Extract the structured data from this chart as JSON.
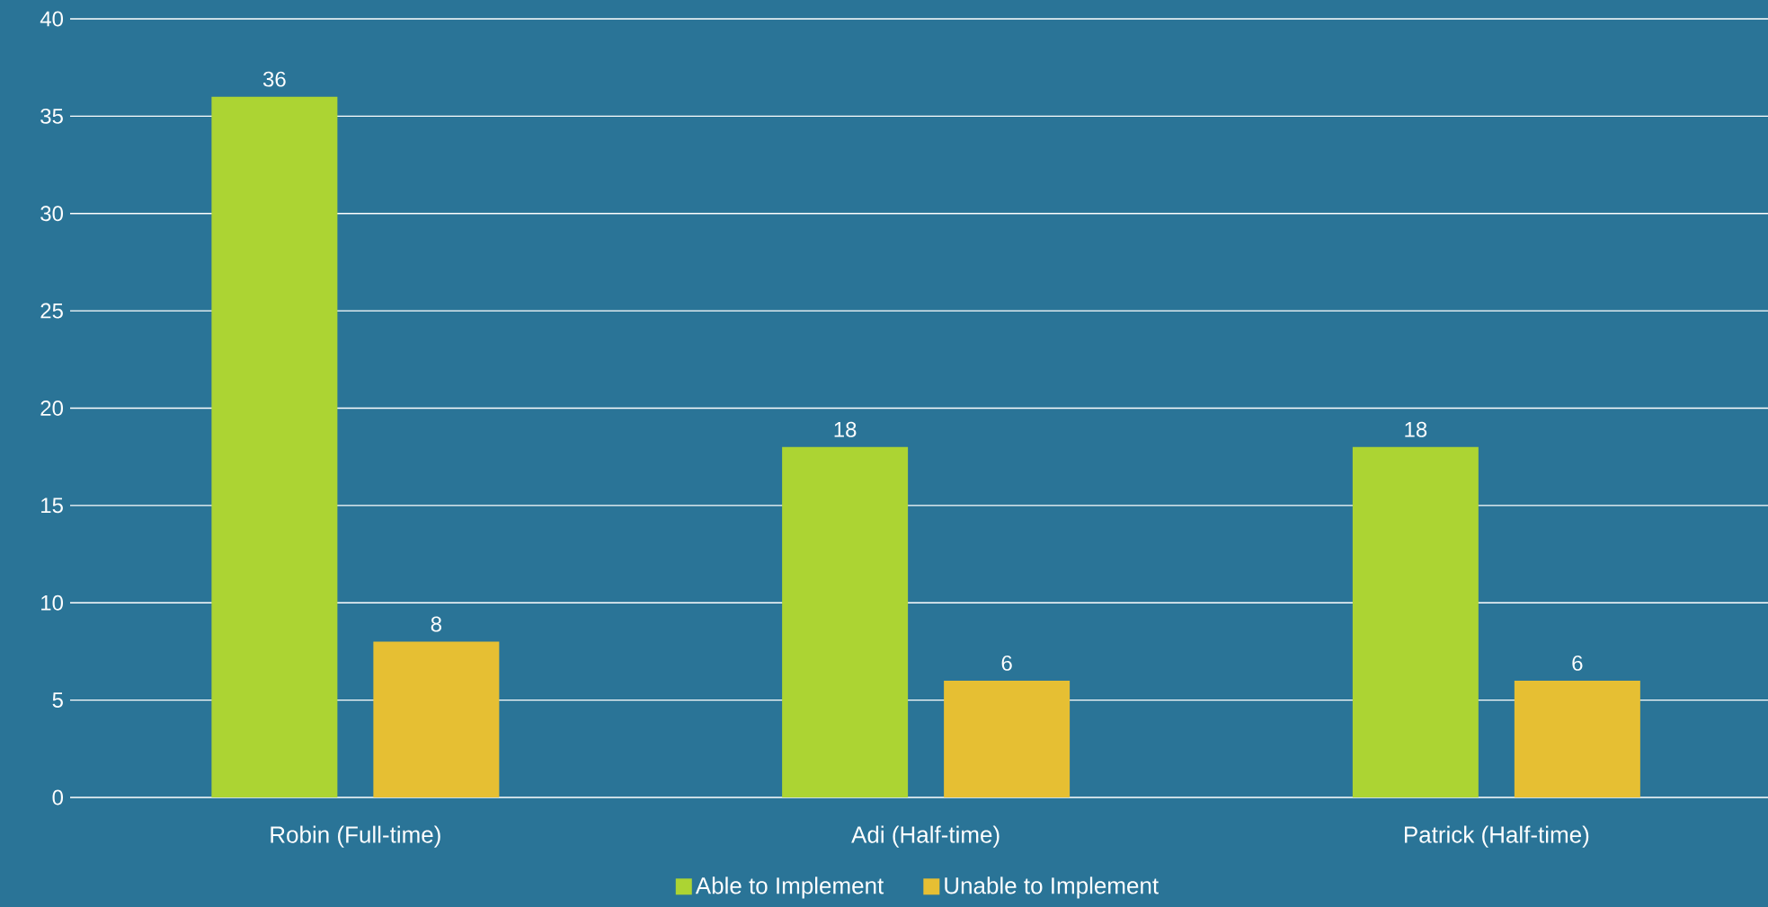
{
  "chart_data": {
    "type": "bar",
    "categories": [
      "Robin (Full-time)",
      "Adi (Half-time)",
      "Patrick (Half-time)"
    ],
    "series": [
      {
        "name": "Able to Implement",
        "color": "#acd433",
        "values": [
          36,
          18,
          18
        ]
      },
      {
        "name": "Unable to Implement",
        "color": "#e6bf33",
        "values": [
          8,
          6,
          6
        ]
      }
    ],
    "ylim": [
      0,
      40
    ],
    "yticks": [
      0,
      5,
      10,
      15,
      20,
      25,
      30,
      35,
      40
    ],
    "grid": "y",
    "legend": "bottom",
    "data_labels": true
  }
}
